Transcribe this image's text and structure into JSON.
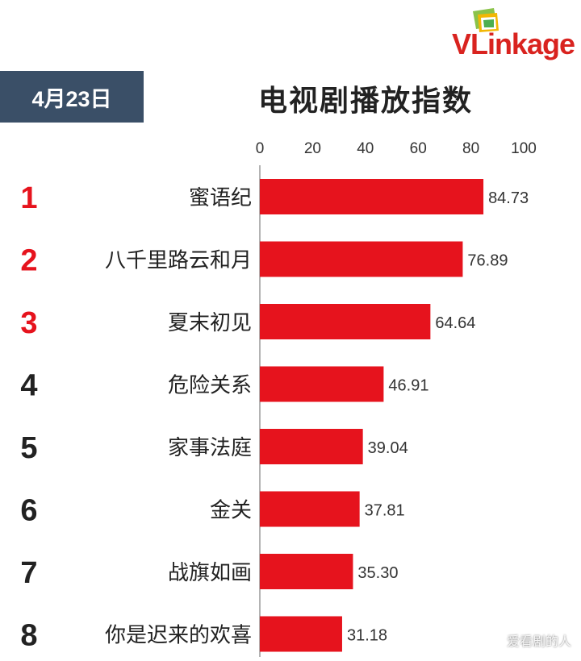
{
  "logo": {
    "text": "VLinkage"
  },
  "date_label": "4月23日",
  "watermark": "爱看剧的人",
  "colors": {
    "bar": "#e6131d",
    "top_rank": "#e6131d",
    "rank": "#222222",
    "badge": "#3a4f67"
  },
  "chart_data": {
    "type": "bar",
    "orientation": "horizontal",
    "title": "电视剧播放指数",
    "xlim": [
      0,
      100
    ],
    "x_ticks": [
      "0",
      "20",
      "40",
      "60",
      "80",
      "100"
    ],
    "ranks": [
      "1",
      "2",
      "3",
      "4",
      "5",
      "6",
      "7",
      "8"
    ],
    "categories": [
      "蜜语纪",
      "八千里路云和月",
      "夏末初见",
      "危险关系",
      "家事法庭",
      "金关",
      "战旗如画",
      "你是迟来的欢喜"
    ],
    "values": [
      84.73,
      76.89,
      64.64,
      46.91,
      39.04,
      37.81,
      35.3,
      31.18
    ],
    "value_labels": [
      "84.73",
      "76.89",
      "64.64",
      "46.91",
      "39.04",
      "37.81",
      "35.30",
      "31.18"
    ],
    "highlighted_ranks": 3,
    "grid": false,
    "legend": "none"
  }
}
